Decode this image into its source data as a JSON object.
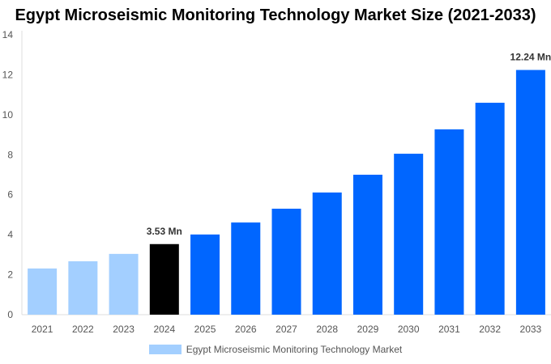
{
  "chart_data": {
    "type": "bar",
    "title": "Egypt Microseismic Monitoring Technology Market Size (2021-2033)",
    "categories": [
      "2021",
      "2022",
      "2023",
      "2024",
      "2025",
      "2026",
      "2027",
      "2028",
      "2029",
      "2030",
      "2031",
      "2032",
      "2033"
    ],
    "series": [
      {
        "name": "Egypt Microseismic Monitoring Technology Market",
        "values": [
          2.31,
          2.67,
          3.04,
          3.53,
          4.01,
          4.61,
          5.3,
          6.11,
          7.0,
          8.05,
          9.27,
          10.6,
          12.24
        ]
      }
    ],
    "data_labels": {
      "2024": "3.53 Mn",
      "2033": "12.24 Mn"
    },
    "ylim": [
      0,
      14
    ],
    "yticks": [
      0,
      2,
      4,
      6,
      8,
      10,
      12,
      14
    ],
    "xlabel": "",
    "ylabel": "",
    "grid": false,
    "legend": "bottom",
    "colors": {
      "historical": "#a3cfff",
      "base_year": "#000000",
      "forecast": "#0066ff"
    }
  }
}
